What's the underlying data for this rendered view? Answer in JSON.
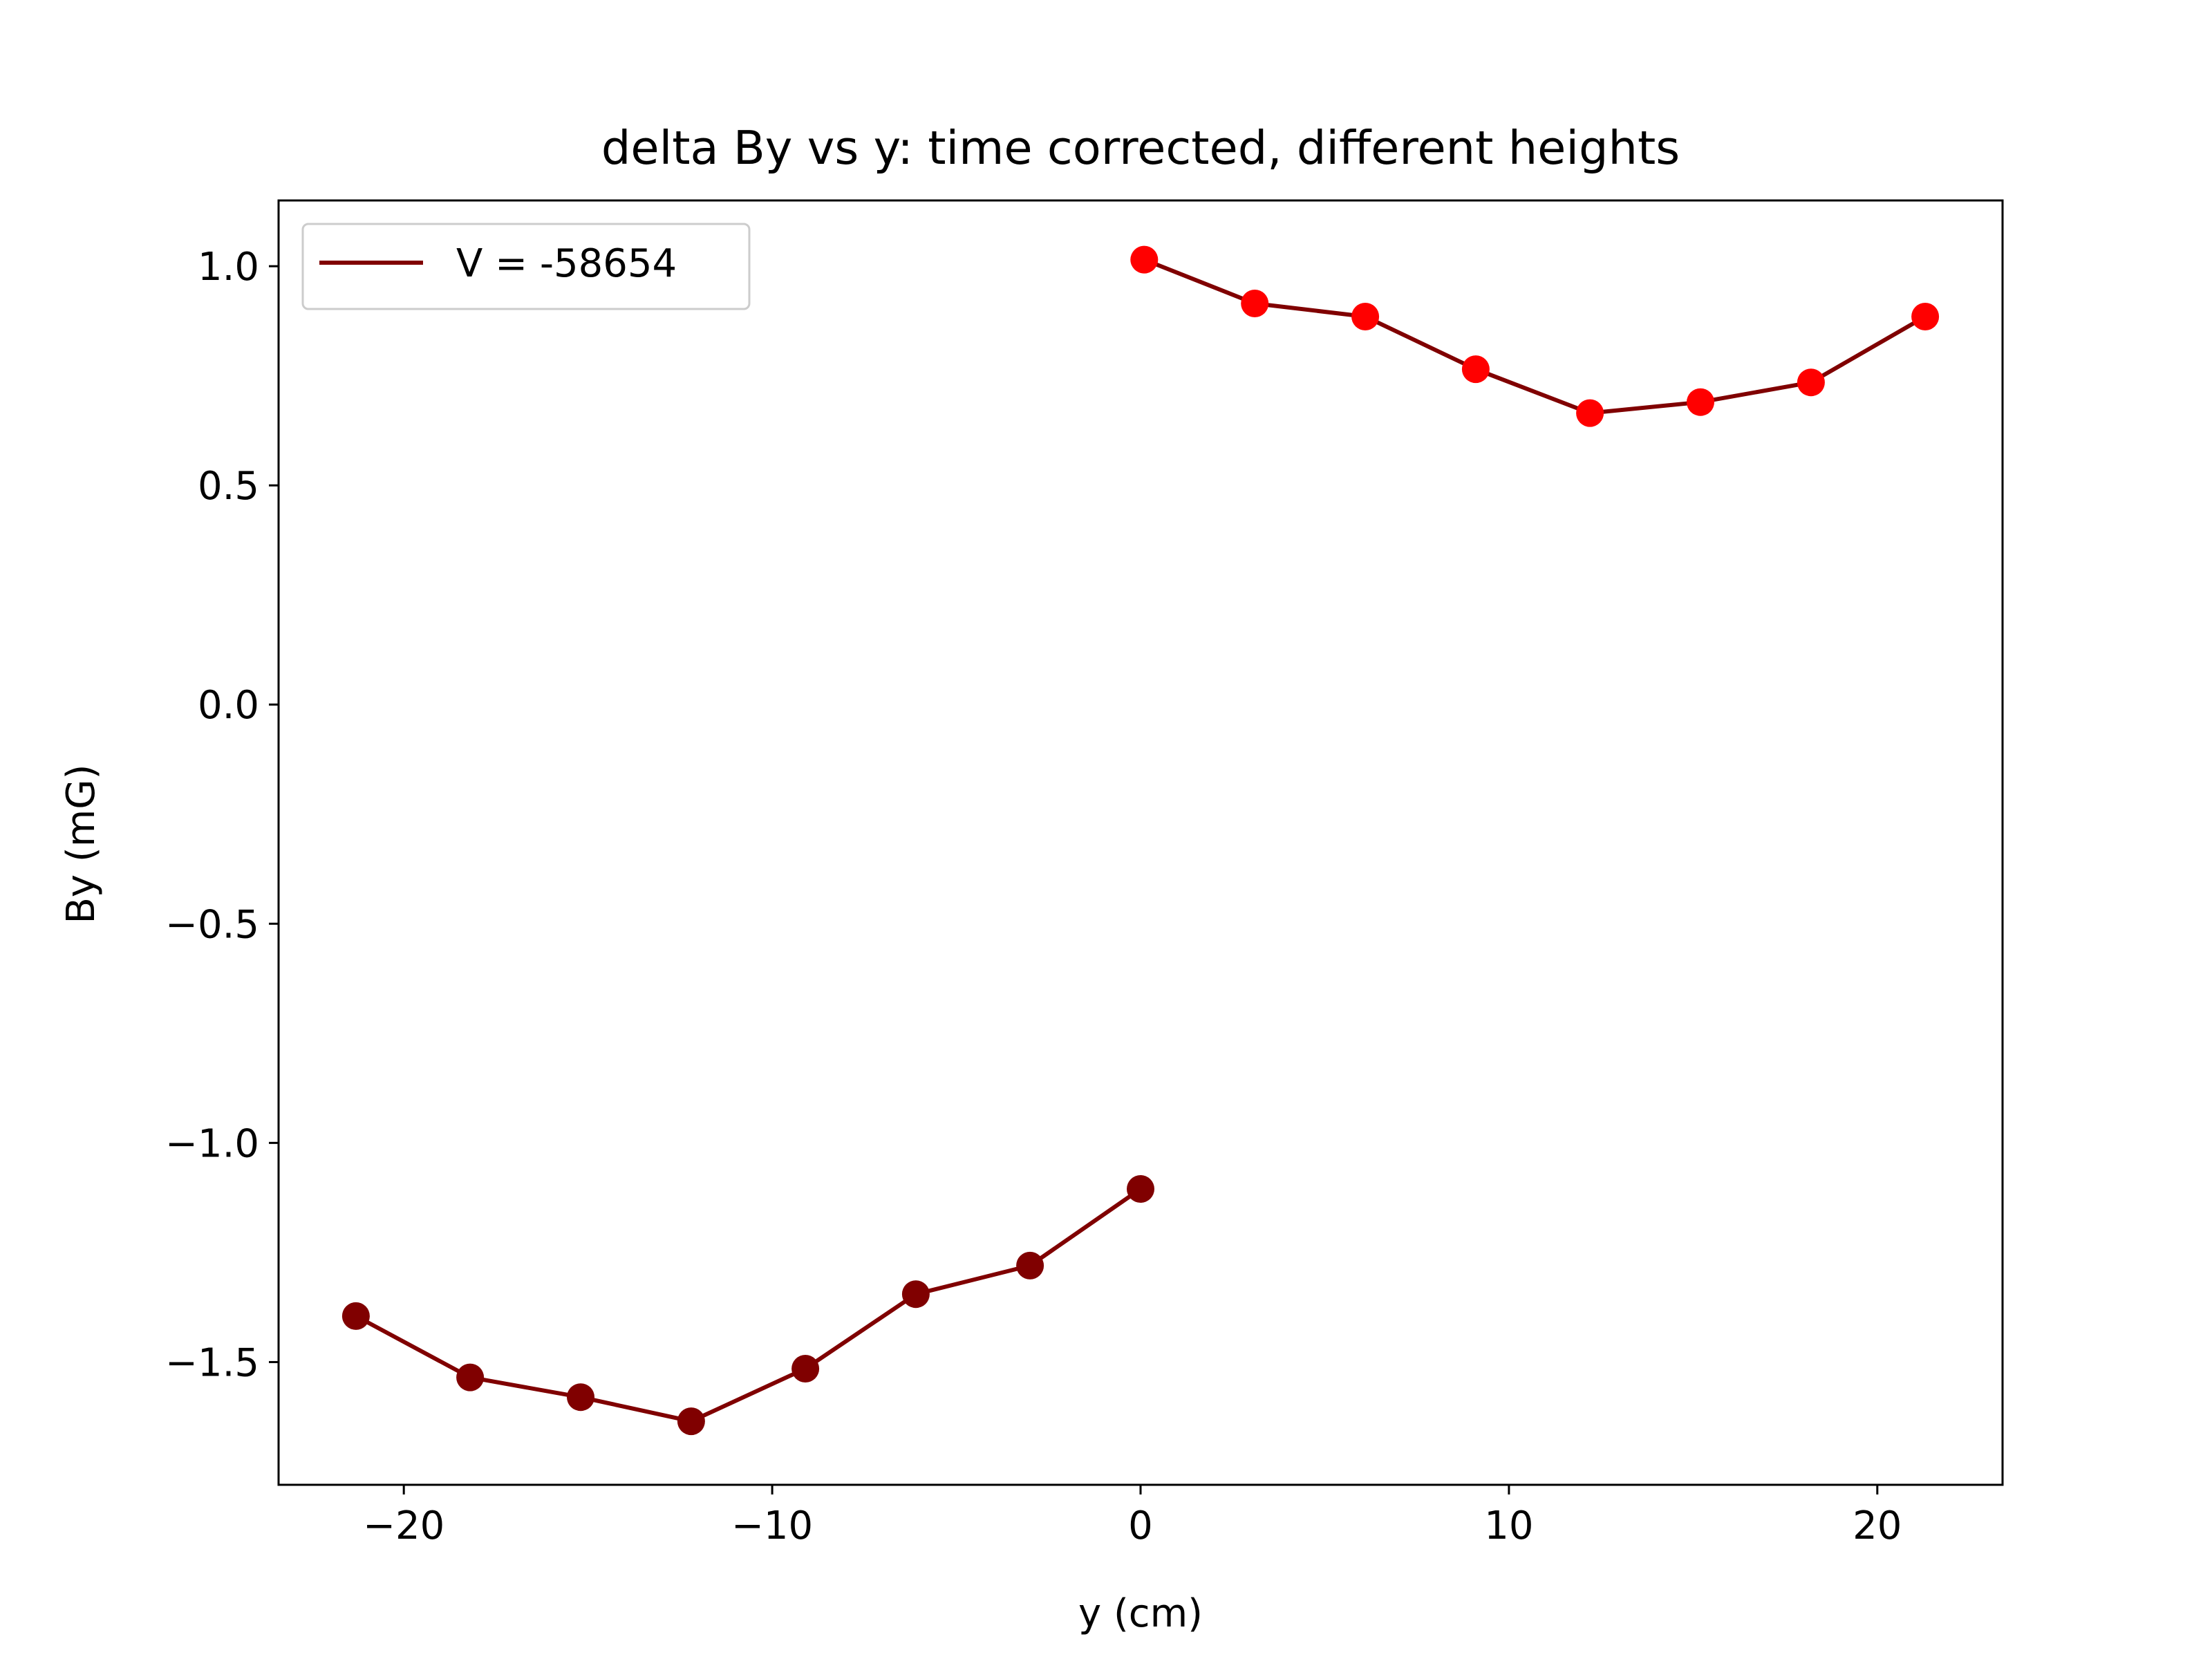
{
  "chart_data": {
    "type": "line",
    "title": "delta By vs y: time corrected, different heights",
    "xlabel": "y (cm)",
    "ylabel": "By (mG)",
    "xlim": [
      -23.4,
      23.4
    ],
    "ylim": [
      -1.78,
      1.15
    ],
    "xticks": [
      -20,
      -10,
      0,
      10,
      20
    ],
    "xtick_labels": [
      "−20",
      "−10",
      "0",
      "10",
      "20"
    ],
    "yticks": [
      1.0,
      0.5,
      0.0,
      -0.5,
      -1.0,
      -1.5
    ],
    "ytick_labels": [
      "1.0",
      "0.5",
      "0.0",
      "−0.5",
      "−1.0",
      "−1.5"
    ],
    "grid": false,
    "legend_position": "top-left",
    "line_color": "#800000",
    "series": [
      {
        "name": "V = -58654",
        "line_color": "#800000",
        "marker_color": "#800000",
        "x": [
          -21.3,
          -18.2,
          -15.2,
          -12.2,
          -9.1,
          -6.1,
          -3.0,
          0.0
        ],
        "y": [
          -1.395,
          -1.535,
          -1.58,
          -1.635,
          -1.515,
          -1.345,
          -1.28,
          -1.105
        ]
      },
      {
        "line_color": "#800000",
        "marker_color": "#ff0000",
        "x": [
          0.1,
          3.1,
          6.1,
          9.1,
          12.2,
          15.2,
          18.2,
          21.3
        ],
        "y": [
          1.015,
          0.915,
          0.885,
          0.765,
          0.665,
          0.69,
          0.735,
          0.885
        ]
      }
    ]
  }
}
